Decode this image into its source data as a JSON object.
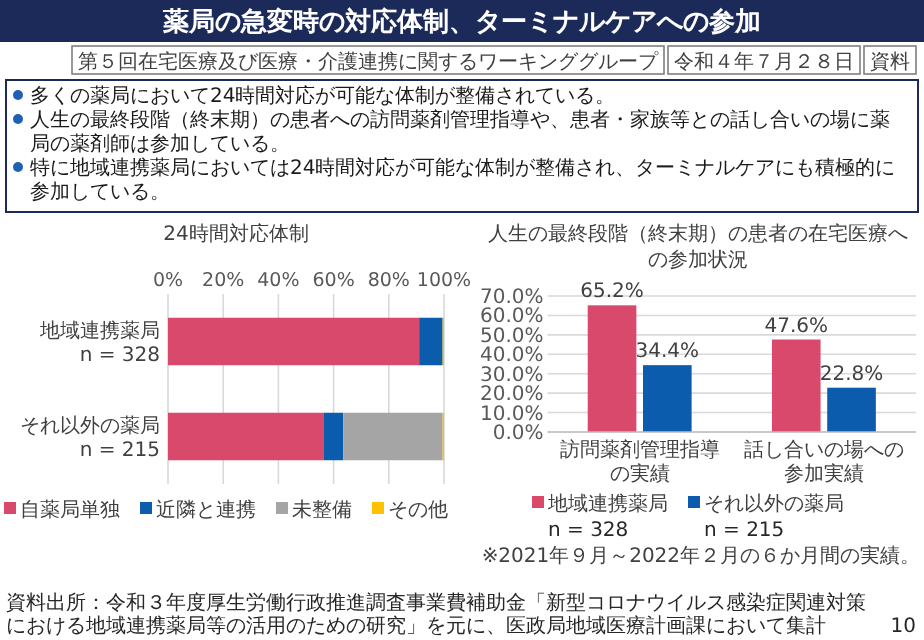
{
  "chart_data": [
    {
      "type": "bar",
      "orientation": "horizontal",
      "stacked": true,
      "title": "24時間対応体制",
      "categories": [
        "地域連携薬局\nn = 328",
        "それ以外の薬局\nn = 215"
      ],
      "series": [
        {
          "name": "自薬局単独",
          "color": "#d9496b",
          "values": [
            91,
            56.5
          ]
        },
        {
          "name": "近隣と連携",
          "color": "#0b5cad",
          "values": [
            8.5,
            7
          ]
        },
        {
          "name": "未整備",
          "color": "#a5a5a5",
          "values": [
            0,
            36
          ]
        },
        {
          "name": "その他",
          "color": "#ffc000",
          "values": [
            0.5,
            0.5
          ]
        }
      ],
      "xlim": [
        0,
        100
      ],
      "xticks": [
        {
          "value": 0,
          "label": "0%"
        },
        {
          "value": 20,
          "label": "20%"
        },
        {
          "value": 40,
          "label": "40%"
        },
        {
          "value": 60,
          "label": "60%"
        },
        {
          "value": 80,
          "label": "80%"
        },
        {
          "value": 100,
          "label": "100%"
        }
      ],
      "grid": "x",
      "legend": "bottom",
      "annotations": [
        "薬局の急変時の対応体制、ターミナルケアへの参加",
        "第５回在宅医療及び医療・介護連携に関するワーキンググループ",
        "令和４年７月２８日",
        "資料",
        "多くの薬局において24時間対応が可能な体制が整備されている。",
        "人生の最終段階（終末期）の患者への訪問薬剤管理指導や、患者・家族等との話し合いの場に薬局の薬剤師は参加している。",
        "特に地域連携薬局においては24時間対応が可能な体制が整備され、ターミナルケアにも積極的に参加している。",
        "資料出所：令和３年度厚生労働行政推進調査事業費補助金「新型コロナウイルス感染症関連対策における地域連携薬局等の活用のための研究」を元に、医政局地域医療計画課において集計",
        "10"
      ]
    },
    {
      "type": "bar",
      "title": "人生の最終段階（終末期）の患者の在宅医療への参加状況",
      "categories": [
        "訪問薬剤管理指導の実績",
        "話し合いの場への参加実績"
      ],
      "series": [
        {
          "name": "地域連携薬局",
          "color": "#d9496b",
          "values": [
            65.2,
            47.6
          ],
          "value_labels": [
            "65.2%",
            "47.6%"
          ]
        },
        {
          "name": "それ以外の薬局",
          "color": "#0b5cad",
          "values": [
            34.4,
            22.8
          ],
          "value_labels": [
            "34.4%",
            "22.8%"
          ]
        }
      ],
      "ylim": [
        0,
        70
      ],
      "yticks": [
        {
          "value": 0,
          "label": "0.0%"
        },
        {
          "value": 10,
          "label": "10.0%"
        },
        {
          "value": 20,
          "label": "20.0%"
        },
        {
          "value": 30,
          "label": "30.0%"
        },
        {
          "value": 40,
          "label": "40.0%"
        },
        {
          "value": 50,
          "label": "50.0%"
        },
        {
          "value": 60,
          "label": "60.0%"
        },
        {
          "value": 70,
          "label": "70.0%"
        }
      ],
      "grid": "y",
      "legend": "bottom",
      "annotations": [
        "n = 328",
        "n = 215",
        "※2021年９月～2022年２月の６か月間の実績。"
      ]
    }
  ]
}
